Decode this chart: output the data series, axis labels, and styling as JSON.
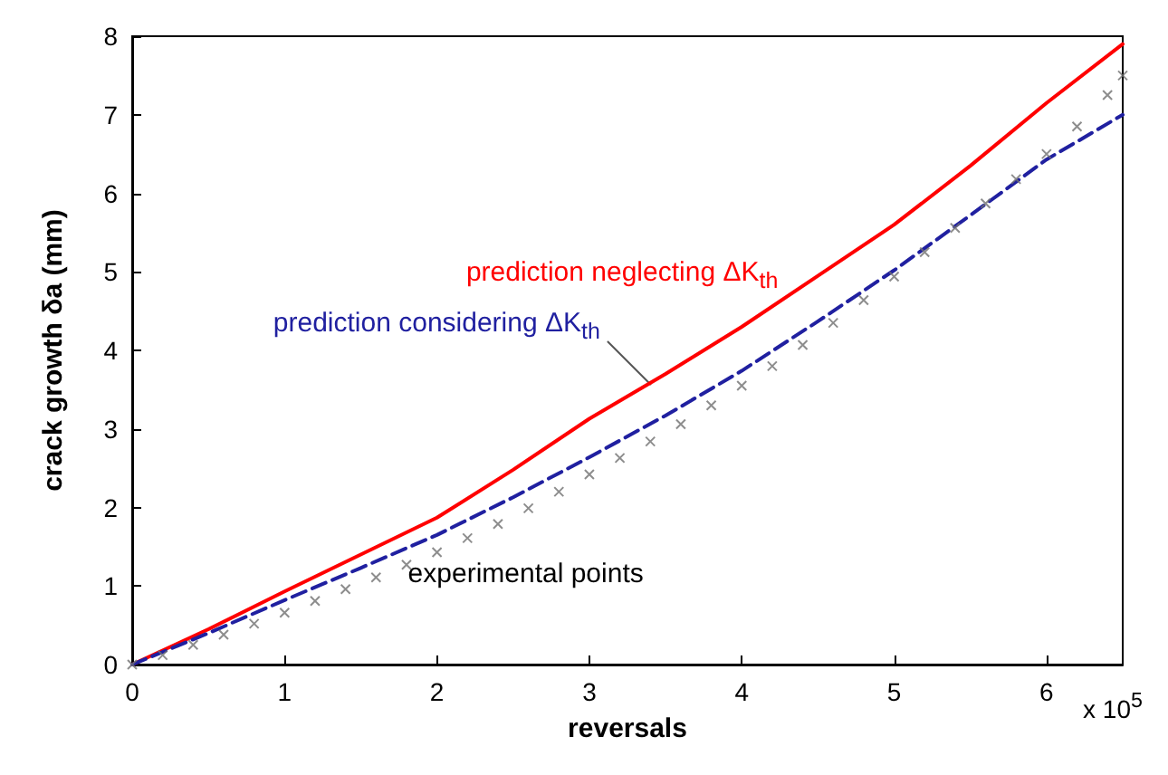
{
  "chart_data": {
    "type": "line",
    "xlabel": "reversals",
    "ylabel": "crack growth δa (mm)",
    "xlim": [
      0,
      6.5
    ],
    "xticks": [
      0,
      1,
      2,
      3,
      4,
      5,
      6
    ],
    "ylim": [
      0,
      8
    ],
    "yticks": [
      0,
      1,
      2,
      3,
      4,
      5,
      6,
      7,
      8
    ],
    "grid": false,
    "legend": false,
    "annotations": [
      "x 10$^{5}$"
    ],
    "series": [
      {
        "name": "prediction neglecting ΔK$_{th}$",
        "color": "#ff0000",
        "line_style": "solid",
        "x": [
          0,
          0.5,
          1,
          1.5,
          2,
          2.5,
          3,
          3.5,
          4,
          4.5,
          5,
          5.5,
          6,
          6.5
        ],
        "values": [
          0,
          0.45,
          0.93,
          1.4,
          1.87,
          2.48,
          3.13,
          3.7,
          4.3,
          4.95,
          5.6,
          6.35,
          7.15,
          7.9
        ]
      },
      {
        "name": "prediction considering ΔK$_{th}$",
        "color": "#2020a0",
        "line_style": "dashed",
        "x": [
          0,
          0.5,
          1,
          1.5,
          2,
          2.5,
          3,
          3.5,
          4,
          4.5,
          5,
          5.5,
          6,
          6.5
        ],
        "values": [
          0,
          0.4,
          0.82,
          1.23,
          1.65,
          2.13,
          2.64,
          3.17,
          3.74,
          4.37,
          5.02,
          5.72,
          6.43,
          7.0
        ]
      },
      {
        "name": "experimental points",
        "type": "scatter",
        "marker": "cross",
        "color": "#707070",
        "x": [
          0,
          0.2,
          0.4,
          0.6,
          0.8,
          1,
          1.2,
          1.4,
          1.6,
          1.8,
          2,
          2.2,
          2.4,
          2.6,
          2.8,
          3,
          3.2,
          3.4,
          3.6,
          3.8,
          4,
          4.2,
          4.4,
          4.6,
          4.8,
          5,
          5.2,
          5.4,
          5.6,
          5.8,
          6,
          6.2,
          6.4,
          6.5
        ],
        "values": [
          0,
          0.12,
          0.25,
          0.38,
          0.52,
          0.66,
          0.81,
          0.96,
          1.11,
          1.27,
          1.43,
          1.61,
          1.79,
          1.99,
          2.2,
          2.42,
          2.63,
          2.84,
          3.06,
          3.3,
          3.55,
          3.8,
          4.07,
          4.35,
          4.64,
          4.94,
          5.25,
          5.56,
          5.87,
          6.18,
          6.5,
          6.85,
          7.25,
          7.5
        ]
      }
    ]
  }
}
